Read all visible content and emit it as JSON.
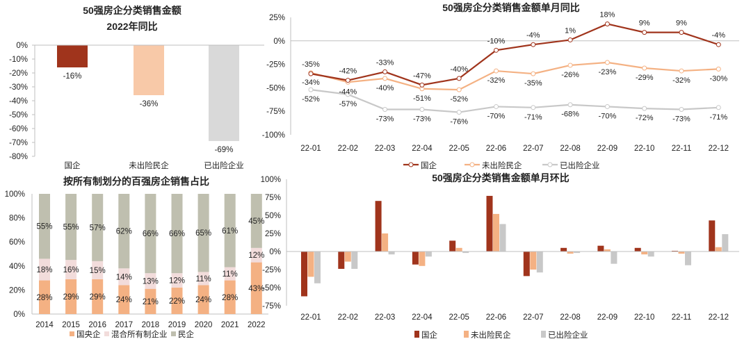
{
  "colors": {
    "soe": "#a0341c",
    "private_safe": "#f4b183",
    "private_risk": "#c8c8c8",
    "central": "#f4b183",
    "mixed": "#f2dcdb",
    "private": "#bfbfaf"
  },
  "chart_data": [
    {
      "id": "yoy2022",
      "type": "bar",
      "title": [
        "50强房企分类销售金额",
        "2022年同比"
      ],
      "categories": [
        "国企",
        "未出险民企",
        "已出险企业"
      ],
      "values": [
        -16,
        -36,
        -69
      ],
      "data_labels": [
        "-16%",
        "-36%",
        "-69%"
      ],
      "ylim": [
        -80,
        0
      ],
      "yticks": [
        "0%",
        "-10%",
        "-20%",
        "-30%",
        "-40%",
        "-50%",
        "-60%",
        "-70%",
        "-80%"
      ],
      "colors": [
        "#a0341c",
        "#f8c9a8",
        "#d9d9d9"
      ],
      "grid": false
    },
    {
      "id": "monthly_yoy",
      "type": "line",
      "title": "50强房企分类销售金额单月同比",
      "categories": [
        "22-01",
        "22-02",
        "22-03",
        "22-04",
        "22-05",
        "22-06",
        "22-07",
        "22-08",
        "22-09",
        "22-10",
        "22-11",
        "22-12"
      ],
      "series": [
        {
          "name": "国企",
          "values": [
            -35,
            -42,
            -33,
            -47,
            -40,
            -10,
            -4,
            1,
            18,
            9,
            9,
            -4
          ],
          "labels": [
            "-35%",
            "-42%",
            "-33%",
            "-47%",
            "-40%",
            "-10%",
            "-4%",
            "1%",
            "18%",
            "9%",
            "9%",
            "-4%"
          ],
          "color": "#a0341c"
        },
        {
          "name": "未出险民企",
          "values": [
            -34,
            -44,
            -40,
            -51,
            -52,
            -32,
            -35,
            -26,
            -23,
            -29,
            -32,
            -30
          ],
          "labels": [
            "-34%",
            "-44%",
            "-40%",
            "-51%",
            "-52%",
            "-32%",
            "-35%",
            "-26%",
            "-23%",
            "-29%",
            "-32%",
            "-30%"
          ],
          "color": "#f4b183"
        },
        {
          "name": "已出险企业",
          "values": [
            -52,
            -57,
            -73,
            -73,
            -76,
            -70,
            -71,
            -68,
            -70,
            -72,
            -73,
            -71
          ],
          "labels": [
            "-52%",
            "-57%",
            "-73%",
            "-73%",
            "-76%",
            "-70%",
            "-71%",
            "-68%",
            "-70%",
            "-72%",
            "-73%",
            "-71%"
          ],
          "color": "#c8c8c8"
        }
      ],
      "ylim": [
        -100,
        25
      ],
      "yticks": [
        "25%",
        "0%",
        "-25%",
        "-50%",
        "-75%",
        "-100%"
      ],
      "legend": "bottom",
      "grid": false
    },
    {
      "id": "ownership_share",
      "type": "bar",
      "stacked": true,
      "title": "按所有制划分的百强房企销售占比",
      "categories": [
        "2014",
        "2015",
        "2016",
        "2017",
        "2018",
        "2019",
        "2020",
        "2021",
        "2022"
      ],
      "series": [
        {
          "name": "国央企",
          "values": [
            28,
            29,
            29,
            24,
            21,
            22,
            24,
            28,
            43
          ],
          "color": "#f4b183"
        },
        {
          "name": "混合所有制企业",
          "values": [
            18,
            16,
            15,
            14,
            13,
            12,
            11,
            11,
            12
          ],
          "color": "#f2dcdb"
        },
        {
          "name": "民企",
          "values": [
            55,
            55,
            57,
            62,
            66,
            66,
            65,
            61,
            45
          ],
          "color": "#bfbfaf"
        }
      ],
      "ylim": [
        0,
        100
      ],
      "yticks": [
        "100%",
        "80%",
        "60%",
        "40%",
        "20%",
        "0%"
      ],
      "legend": "bottom",
      "grid": false
    },
    {
      "id": "monthly_mom",
      "type": "bar",
      "title": "50强房企分类销售金额单月环比",
      "categories": [
        "22-01",
        "22-02",
        "22-03",
        "22-04",
        "22-05",
        "22-06",
        "22-07",
        "22-08",
        "22-09",
        "22-10",
        "22-11",
        "22-12"
      ],
      "series": [
        {
          "name": "国企",
          "values": [
            -62,
            -24,
            70,
            -18,
            15,
            77,
            -34,
            5,
            8,
            5,
            1,
            43
          ],
          "color": "#a0341c"
        },
        {
          "name": "未出险民企",
          "values": [
            -35,
            -14,
            25,
            -20,
            5,
            52,
            -25,
            -3,
            3,
            -4,
            -3,
            6
          ],
          "color": "#f4b183"
        },
        {
          "name": "已出险企业",
          "values": [
            -44,
            -24,
            -4,
            -7,
            -2,
            38,
            -29,
            -2,
            -17,
            -7,
            -19,
            24
          ],
          "color": "#c8c8c8"
        }
      ],
      "ylim": [
        -75,
        100
      ],
      "yticks": [
        "100%",
        "75%",
        "50%",
        "25%",
        "0%",
        "-25%",
        "-50%",
        "-75%"
      ],
      "legend": "bottom",
      "grid": false
    }
  ]
}
